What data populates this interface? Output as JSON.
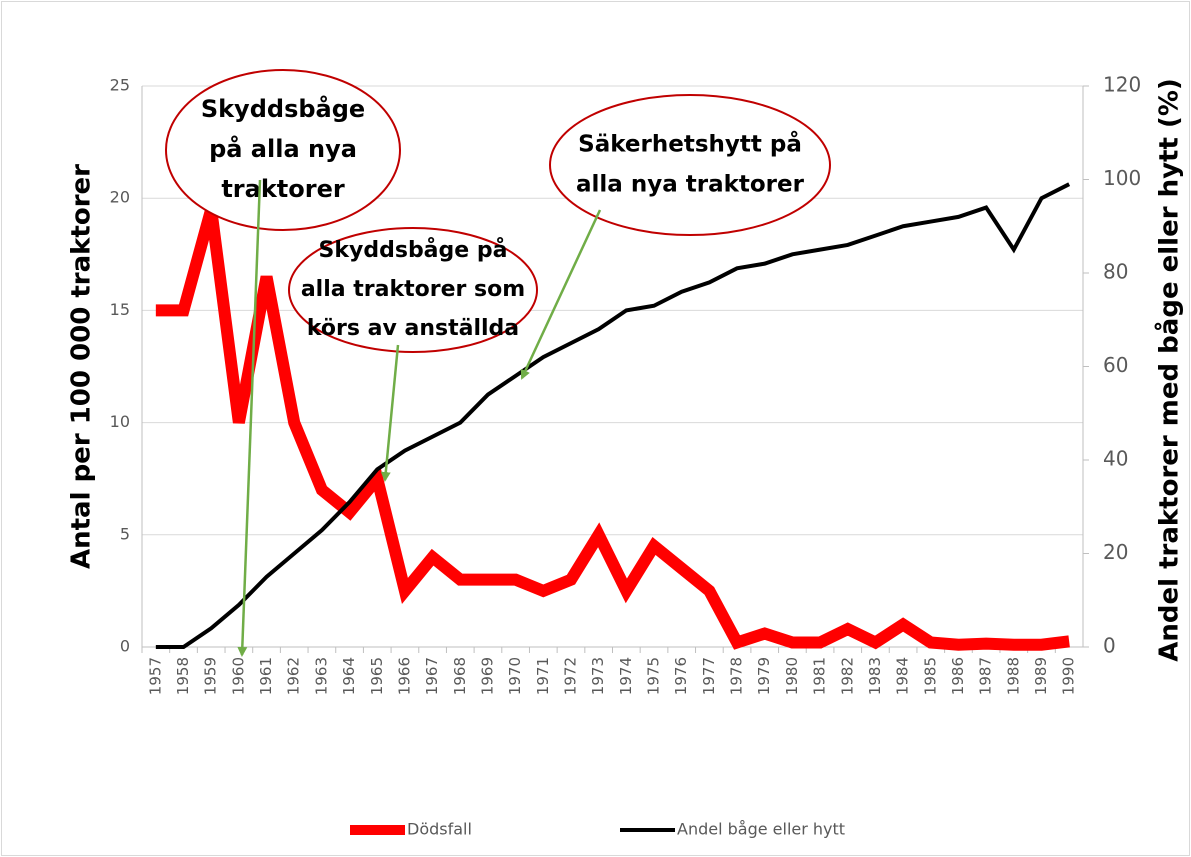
{
  "chart_data": {
    "type": "line",
    "categories": [
      "1957",
      "1958",
      "1959",
      "1960",
      "1961",
      "1962",
      "1963",
      "1964",
      "1965",
      "1966",
      "1967",
      "1968",
      "1969",
      "1970",
      "1971",
      "1972",
      "1973",
      "1974",
      "1975",
      "1976",
      "1977",
      "1978",
      "1979",
      "1980",
      "1981",
      "1982",
      "1983",
      "1984",
      "1985",
      "1986",
      "1987",
      "1988",
      "1989",
      "1990"
    ],
    "series": [
      {
        "name": "Dödsfall",
        "color": "#ff0000",
        "values": [
          15,
          15,
          19.5,
          10,
          16.5,
          10,
          7,
          6,
          7.5,
          2.5,
          4,
          3,
          3,
          3,
          2.5,
          3,
          5,
          2.5,
          4.5,
          3.5,
          2.5,
          0.2,
          0.6,
          0.2,
          0.2,
          0.8,
          0.2,
          1,
          0.2,
          0.1,
          0.15,
          0.1,
          0.1,
          0.25
        ]
      },
      {
        "name": "Andel båge eller hytt",
        "color": "#000000",
        "axis": "y2",
        "values": [
          0,
          0,
          4,
          9,
          15,
          20,
          25,
          31,
          38,
          42,
          45,
          48,
          54,
          58,
          62,
          65,
          68,
          72,
          73,
          76,
          78,
          81,
          82,
          84,
          85,
          86,
          88,
          90,
          91,
          92,
          94,
          85,
          96,
          99
        ]
      }
    ],
    "ylabel": "Antal per 100 000 traktorer",
    "y2label": "Andel traktorer med båge eller hytt (%)",
    "ylim": [
      0,
      25
    ],
    "yticks": [
      0,
      5,
      10,
      15,
      20,
      25
    ],
    "y2lim": [
      0,
      120
    ],
    "y2ticks": [
      0,
      20,
      40,
      60,
      80,
      100,
      120
    ],
    "grid": true,
    "legend": "bottom",
    "annotations": [
      {
        "lines": [
          "Skyddsbåge",
          "på alla nya",
          "traktorer"
        ]
      },
      {
        "lines": [
          "Skyddsbåge på",
          "alla traktorer som",
          "körs av anställda"
        ]
      },
      {
        "lines": [
          "Säkerhetshytt på",
          "alla nya traktorer"
        ]
      }
    ]
  }
}
